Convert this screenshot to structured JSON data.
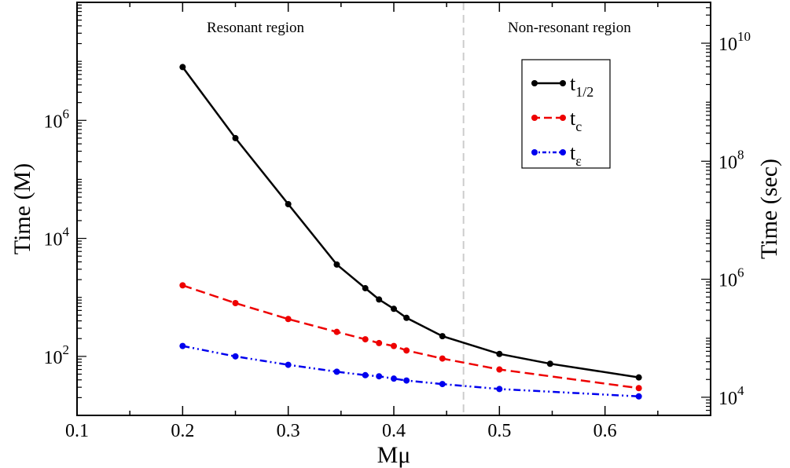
{
  "chart_data": {
    "type": "line",
    "xlabel": "Mμ",
    "ylabel": "Time (M)",
    "ylabel_right": "Time (sec)",
    "xlim": [
      0.1,
      0.7
    ],
    "ylim": [
      10,
      100000000
    ],
    "y_scale": "log",
    "y2_scale": "log",
    "y2lim": [
      4925,
      49250000000
    ],
    "x_ticks": [
      "0.1",
      "0.2",
      "0.3",
      "0.4",
      "0.5",
      "0.6"
    ],
    "y_ticks": [
      {
        "value": 100,
        "base": "10",
        "exp": "2"
      },
      {
        "value": 10000,
        "base": "10",
        "exp": "4"
      },
      {
        "value": 1000000,
        "base": "10",
        "exp": "6"
      }
    ],
    "y2_ticks": [
      {
        "value": 10000,
        "base": "10",
        "exp": "4"
      },
      {
        "value": 1000000,
        "base": "10",
        "exp": "6"
      },
      {
        "value": 100000000,
        "base": "10",
        "exp": "8"
      },
      {
        "value": 10000000000,
        "base": "10",
        "exp": "10"
      }
    ],
    "annotations": [
      {
        "text": "Resonant region"
      },
      {
        "text": "Non-resonant region"
      }
    ],
    "divider_x": 0.466,
    "grid": false,
    "legend_position": "upper-right",
    "series": [
      {
        "name": "t",
        "subscript": "1/2",
        "color": "#000000",
        "dash": "solid",
        "x": [
          0.2,
          0.25,
          0.3,
          0.346,
          0.373,
          0.386,
          0.4,
          0.412,
          0.446,
          0.5,
          0.548,
          0.632
        ],
        "y": [
          8000000,
          500000,
          38000,
          3600,
          1430,
          920,
          640,
          450,
          220,
          110,
          75,
          44
        ]
      },
      {
        "name": "t",
        "subscript": "c",
        "color": "#ee0000",
        "dash": "dashed",
        "x": [
          0.2,
          0.25,
          0.3,
          0.346,
          0.373,
          0.386,
          0.4,
          0.412,
          0.446,
          0.5,
          0.632
        ],
        "y": [
          1600,
          800,
          430,
          260,
          195,
          168,
          150,
          126,
          92,
          60,
          29
        ]
      },
      {
        "name": "t",
        "subscript": "ε",
        "color": "#0000ee",
        "dash": "dash-dot-dot",
        "x": [
          0.2,
          0.25,
          0.3,
          0.346,
          0.373,
          0.386,
          0.4,
          0.412,
          0.446,
          0.5,
          0.632
        ],
        "y": [
          150,
          100,
          72,
          55,
          48,
          46,
          42,
          39,
          34,
          28,
          21
        ]
      }
    ]
  }
}
